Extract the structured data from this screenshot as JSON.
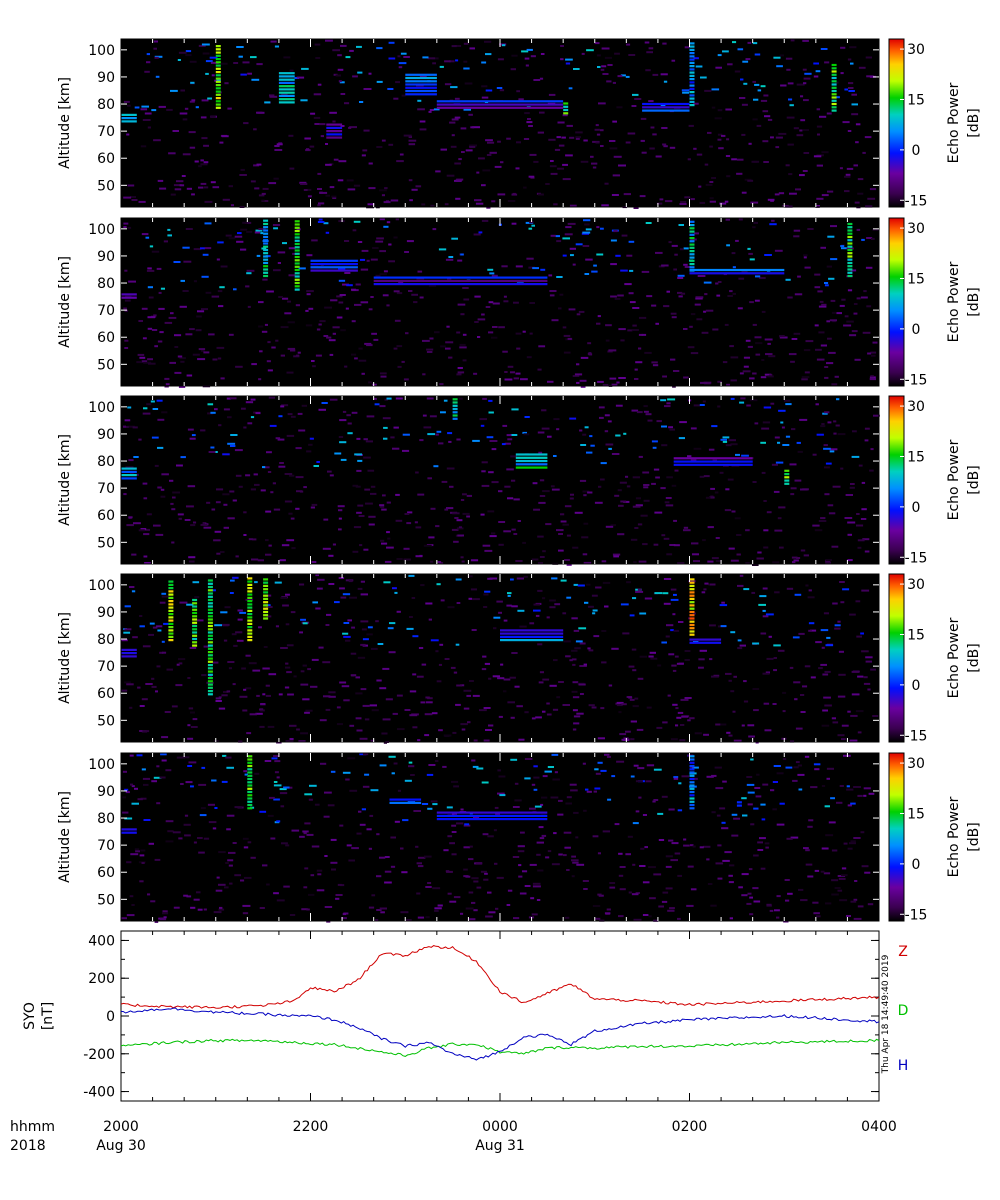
{
  "chart_data": [
    {
      "type": "heatmap",
      "panel": 1,
      "ylabel": "Altitude [km]",
      "ylim": [
        42,
        104
      ],
      "yticks": [
        50,
        60,
        70,
        80,
        90,
        100
      ],
      "colorbar_label": [
        "Echo Power",
        "[dB]"
      ],
      "colorbar_range": [
        -17,
        33
      ],
      "colorbar_ticks": [
        -15,
        0,
        15,
        30
      ],
      "echo_features": [
        {
          "time": "2000-2010",
          "alt": [
            74,
            77
          ],
          "power": 10
        },
        {
          "time": "2100",
          "alt": [
            79,
            103
          ],
          "power": 25
        },
        {
          "time": "2140-2150",
          "alt": [
            81,
            93
          ],
          "power": 15
        },
        {
          "time": "2210-2220",
          "alt": [
            68,
            73
          ],
          "power": 0
        },
        {
          "time": "2300-2320",
          "alt": [
            84,
            92
          ],
          "power": 8
        },
        {
          "time": "2320-0040",
          "alt": [
            79,
            82
          ],
          "power": 2
        },
        {
          "time": "0040",
          "alt": [
            77,
            81
          ],
          "power": 20
        },
        {
          "time": "0130-0200",
          "alt": [
            78,
            81
          ],
          "power": 5
        },
        {
          "time": "0200",
          "alt": [
            80,
            103
          ],
          "power": 10
        },
        {
          "time": "0330",
          "alt": [
            78,
            96
          ],
          "power": 20
        }
      ]
    },
    {
      "type": "heatmap",
      "panel": 2,
      "ylabel": "Altitude [km]",
      "ylim": [
        42,
        104
      ],
      "yticks": [
        50,
        60,
        70,
        80,
        90,
        100
      ],
      "colorbar_label": [
        "Echo Power",
        "[dB]"
      ],
      "colorbar_range": [
        -17,
        33
      ],
      "colorbar_ticks": [
        -15,
        0,
        15,
        30
      ],
      "echo_features": [
        {
          "time": "2000-2010",
          "alt": [
            75,
            77
          ],
          "power": 5
        },
        {
          "time": "2130",
          "alt": [
            83,
            104
          ],
          "power": 15
        },
        {
          "time": "2150",
          "alt": [
            78,
            104
          ],
          "power": 20
        },
        {
          "time": "2200-2230",
          "alt": [
            85,
            89
          ],
          "power": 5
        },
        {
          "time": "2240-0030",
          "alt": [
            80,
            83
          ],
          "power": 2
        },
        {
          "time": "0200",
          "alt": [
            85,
            104
          ],
          "power": 15
        },
        {
          "time": "0200-0300",
          "alt": [
            84,
            86
          ],
          "power": 5
        },
        {
          "time": "0340",
          "alt": [
            83,
            103
          ],
          "power": 20
        }
      ]
    },
    {
      "type": "heatmap",
      "panel": 3,
      "ylabel": "Altitude [km]",
      "ylim": [
        42,
        104
      ],
      "yticks": [
        50,
        60,
        70,
        80,
        90,
        100
      ],
      "colorbar_label": [
        "Echo Power",
        "[dB]"
      ],
      "colorbar_range": [
        -17,
        33
      ],
      "colorbar_ticks": [
        -15,
        0,
        15,
        30
      ],
      "echo_features": [
        {
          "time": "2000-2010",
          "alt": [
            74,
            78
          ],
          "power": 10
        },
        {
          "time": "2330",
          "alt": [
            96,
            104
          ],
          "power": 15
        },
        {
          "time": "0010-0030",
          "alt": [
            78,
            83
          ],
          "power": 15
        },
        {
          "time": "0150-0240",
          "alt": [
            79,
            82
          ],
          "power": 2
        },
        {
          "time": "0300",
          "alt": [
            72,
            78
          ],
          "power": 20
        }
      ]
    },
    {
      "type": "heatmap",
      "panel": 4,
      "ylabel": "Altitude [km]",
      "ylim": [
        42,
        104
      ],
      "yticks": [
        50,
        60,
        70,
        80,
        90,
        100
      ],
      "colorbar_label": [
        "Echo Power",
        "[dB]"
      ],
      "colorbar_range": [
        -17,
        33
      ],
      "colorbar_ticks": [
        -15,
        0,
        15,
        30
      ],
      "echo_features": [
        {
          "time": "2000-2010",
          "alt": [
            74,
            77
          ],
          "power": 5
        },
        {
          "time": "2030",
          "alt": [
            80,
            102
          ],
          "power": 25
        },
        {
          "time": "2045",
          "alt": [
            78,
            96
          ],
          "power": 20
        },
        {
          "time": "2055",
          "alt": [
            60,
            103
          ],
          "power": 20
        },
        {
          "time": "2120",
          "alt": [
            80,
            103
          ],
          "power": 25
        },
        {
          "time": "2130",
          "alt": [
            88,
            103
          ],
          "power": 25
        },
        {
          "time": "0000-0040",
          "alt": [
            80,
            84
          ],
          "power": 8
        },
        {
          "time": "0200",
          "alt": [
            82,
            103
          ],
          "power": 30
        },
        {
          "time": "0200-0220",
          "alt": [
            79,
            81
          ],
          "power": 2
        }
      ]
    },
    {
      "type": "heatmap",
      "panel": 5,
      "ylabel": "Altitude [km]",
      "ylim": [
        42,
        104
      ],
      "yticks": [
        50,
        60,
        70,
        80,
        90,
        100
      ],
      "colorbar_label": [
        "Echo Power",
        "[dB]"
      ],
      "colorbar_range": [
        -17,
        33
      ],
      "colorbar_ticks": [
        -15,
        0,
        15,
        30
      ],
      "echo_features": [
        {
          "time": "2000-2010",
          "alt": [
            75,
            77
          ],
          "power": 2
        },
        {
          "time": "2120",
          "alt": [
            84,
            104
          ],
          "power": 20
        },
        {
          "time": "2250-2310",
          "alt": [
            86,
            88
          ],
          "power": 5
        },
        {
          "time": "2320-0030",
          "alt": [
            80,
            83
          ],
          "power": 2
        },
        {
          "time": "0200",
          "alt": [
            84,
            104
          ],
          "power": 10
        },
        {
          "time": "0230",
          "alt": [
            85,
            87
          ],
          "power": 5
        }
      ]
    },
    {
      "type": "line",
      "panel": 6,
      "ylabel": "SYO [nT]",
      "ylim": [
        -450,
        450
      ],
      "yticks": [
        -400,
        -200,
        0,
        200,
        400
      ],
      "x": [
        "2000",
        "2030",
        "2100",
        "2130",
        "2150",
        "2200",
        "2215",
        "2230",
        "2245",
        "2300",
        "2315",
        "2330",
        "2345",
        "0000",
        "0015",
        "0030",
        "0045",
        "0100",
        "0130",
        "0200",
        "0300",
        "0400"
      ],
      "series": [
        {
          "name": "Z",
          "color": "#d00000",
          "values": [
            60,
            50,
            45,
            55,
            80,
            150,
            130,
            190,
            330,
            320,
            370,
            360,
            290,
            130,
            70,
            120,
            170,
            90,
            80,
            60,
            80,
            100
          ]
        },
        {
          "name": "D",
          "color": "#00c000",
          "values": [
            -160,
            -140,
            -130,
            -130,
            -140,
            -145,
            -150,
            -170,
            -190,
            -210,
            -170,
            -150,
            -150,
            -190,
            -200,
            -170,
            -165,
            -170,
            -160,
            -160,
            -140,
            -130
          ]
        },
        {
          "name": "H",
          "color": "#0000c0",
          "values": [
            20,
            40,
            20,
            10,
            0,
            0,
            -20,
            -60,
            -120,
            -160,
            -140,
            -200,
            -230,
            -190,
            -110,
            -100,
            -150,
            -80,
            -40,
            -20,
            0,
            -30
          ]
        }
      ]
    }
  ],
  "xaxis": {
    "row1_label": "hhmm",
    "row2_label": "2018",
    "ticks": [
      {
        "label": "2000",
        "date": "Aug 30"
      },
      {
        "label": "2200",
        "date": ""
      },
      {
        "label": "0000",
        "date": "Aug 31"
      },
      {
        "label": "0200",
        "date": ""
      },
      {
        "label": "0400",
        "date": ""
      }
    ]
  },
  "timestamp": "Thu Apr 18 14:49:40 2019",
  "colors": {
    "background": "#000000",
    "frame": "#000000"
  }
}
